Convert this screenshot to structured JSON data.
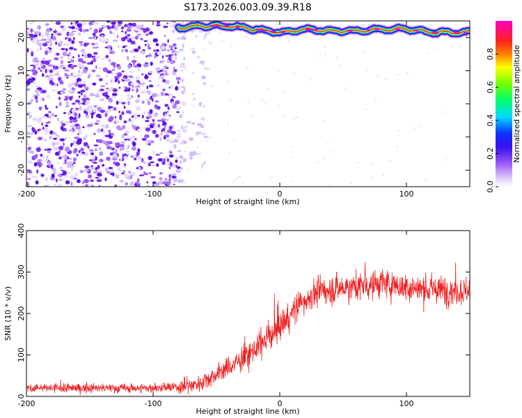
{
  "title": "S173.2026.003.09.39.R18",
  "chart_data": [
    {
      "type": "heatmap",
      "title": "S173.2026.003.09.39.R18",
      "xlabel": "Height of straight line (km)",
      "ylabel": "Frequency (Hz)",
      "xlim": [
        -200,
        150
      ],
      "ylim": [
        -25,
        25
      ],
      "xticks": [
        -200,
        -100,
        0,
        100
      ],
      "yticks": [
        -20,
        -10,
        0,
        10,
        20
      ],
      "noise_region_km": [
        -200,
        -75
      ],
      "signal_ridge": {
        "x_km": [
          -80,
          -60,
          -40,
          -20,
          0,
          20,
          40,
          60,
          80,
          100,
          120,
          150
        ],
        "freq_hz": [
          23,
          23.5,
          23.5,
          22.5,
          21.5,
          22.5,
          22,
          22,
          22.5,
          22.5,
          21.5,
          21.5
        ]
      },
      "colorbar": {
        "label": "Normalized spectral amplitude",
        "range": [
          0.0,
          1.0
        ],
        "ticks": [
          0.0,
          0.2,
          0.4,
          0.6,
          0.8
        ],
        "tick_labels": [
          "0.0",
          "0.2",
          "0.4",
          "0.6",
          "0.8"
        ],
        "colors": [
          "#ffffff",
          "#9b59f6",
          "#5a14e6",
          "#1010ff",
          "#00e0ff",
          "#00ff80",
          "#40ff00",
          "#ffff00",
          "#ff8000",
          "#ff2020",
          "#ff00c0"
        ]
      }
    },
    {
      "type": "line",
      "xlabel": "Height of straight line (km)",
      "ylabel": "SNR (10 * v/v)",
      "xlim": [
        -200,
        150
      ],
      "ylim": [
        0,
        400
      ],
      "xticks": [
        -200,
        -100,
        0,
        100
      ],
      "yticks": [
        0,
        100,
        200,
        300,
        400
      ],
      "color": "#ee2020",
      "series": [
        {
          "name": "SNR",
          "x": [
            -200,
            -150,
            -100,
            -80,
            -65,
            -55,
            -45,
            -35,
            -25,
            -15,
            -5,
            5,
            15,
            25,
            35,
            50,
            65,
            80,
            90,
            100,
            120,
            140,
            150
          ],
          "y": [
            20,
            20,
            20,
            22,
            30,
            45,
            62,
            80,
            100,
            125,
            155,
            185,
            220,
            245,
            255,
            262,
            268,
            272,
            270,
            262,
            258,
            255,
            255
          ]
        }
      ]
    }
  ]
}
